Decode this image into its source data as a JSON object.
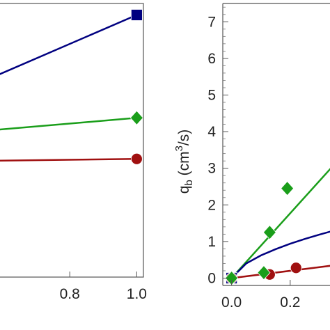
{
  "chart_data": [
    {
      "type": "line",
      "panel": "left",
      "xlabel": "",
      "ylabel": "",
      "xlim": [
        0.55,
        1.02
      ],
      "ylim": [
        0,
        1
      ],
      "x_ticks": [
        0.8,
        1.0
      ],
      "x_tick_labels": [
        "0.8",
        "1.0"
      ],
      "grid": false,
      "series": [
        {
          "color": "#000080",
          "marker": "square",
          "x": [
            0.55,
            1.0
          ],
          "y": [
            0.72,
            0.958
          ]
        },
        {
          "color": "#1a9e1a",
          "marker": "diamond",
          "x": [
            0.55,
            1.0
          ],
          "y": [
            0.535,
            0.582
          ]
        },
        {
          "color": "#a01010",
          "marker": "circle",
          "x": [
            0.55,
            1.0
          ],
          "y": [
            0.425,
            0.432
          ]
        }
      ]
    },
    {
      "type": "scatter",
      "panel": "right",
      "xlabel": "",
      "ylabel": "q_b (cm^3/s)",
      "ylabel_parts": {
        "main": "q",
        "sub": "b",
        "pre": " (cm",
        "sup": "3",
        "post": "/s)"
      },
      "xlim": [
        -0.03,
        0.35
      ],
      "ylim": [
        -0.2,
        7.5
      ],
      "x_ticks": [
        0.0,
        0.2
      ],
      "x_tick_labels": [
        "0.0",
        "0.2"
      ],
      "y_ticks": [
        0,
        1,
        2,
        3,
        4,
        5,
        6,
        7
      ],
      "y_tick_labels": [
        "0",
        "1",
        "2",
        "3",
        "4",
        "5",
        "6",
        "7"
      ],
      "grid": false,
      "series": [
        {
          "color": "#1a9e1a",
          "marker": "diamond",
          "points": {
            "x": [
              0.0,
              0.11,
              0.13,
              0.19
            ],
            "y": [
              0.0,
              0.15,
              1.25,
              2.45
            ]
          },
          "fit": {
            "x": [
              0.0,
              0.35
            ],
            "y": [
              0.0,
              3.1
            ]
          }
        },
        {
          "color": "#000080",
          "marker": "square",
          "points": {
            "x": [
              0.0
            ],
            "y": [
              0.0
            ]
          },
          "fit": {
            "x": [
              0.0,
              0.05,
              0.1,
              0.15,
              0.2,
              0.25,
              0.3,
              0.35
            ],
            "y": [
              0.0,
              0.4,
              0.62,
              0.79,
              0.94,
              1.07,
              1.19,
              1.3
            ]
          }
        },
        {
          "color": "#a01010",
          "marker": "circle",
          "points": {
            "x": [
              0.0,
              0.13,
              0.22
            ],
            "y": [
              0.0,
              0.1,
              0.28
            ]
          },
          "fit": {
            "x": [
              0.0,
              0.35
            ],
            "y": [
              0.0,
              0.35
            ]
          }
        }
      ]
    }
  ]
}
